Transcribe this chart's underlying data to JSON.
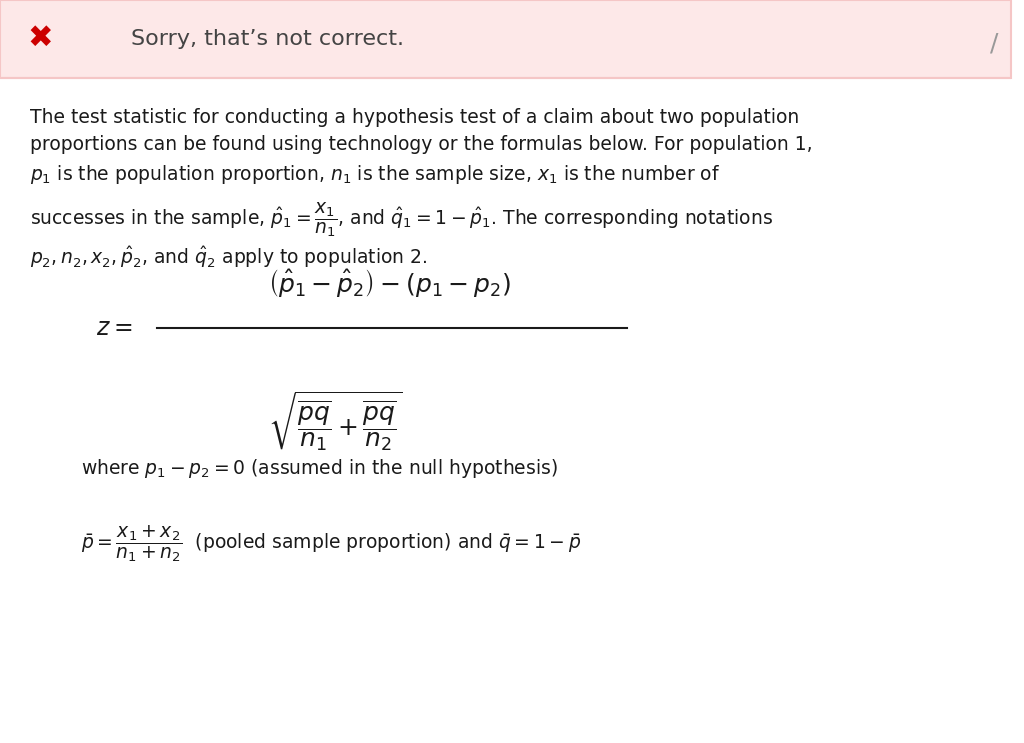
{
  "bg_color": "#ffffff",
  "header_bg": "#fde8e8",
  "header_border": "#f5c6c6",
  "header_text": "Sorry, that’s not correct.",
  "header_text_color": "#444444",
  "body_text_color": "#1a1a1a",
  "cross_color": "#cc0000",
  "fig_width": 10.24,
  "fig_height": 7.43
}
